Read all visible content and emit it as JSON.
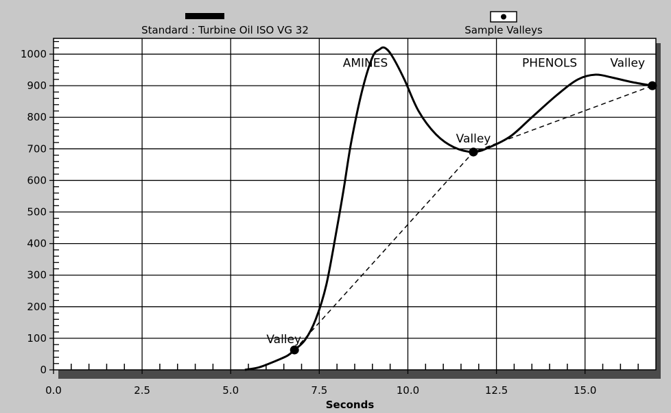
{
  "chart_data": {
    "type": "line",
    "xlabel": "Seconds",
    "ylabel": "",
    "title": "",
    "xlim": [
      0,
      17
    ],
    "ylim": [
      0,
      1050
    ],
    "x_ticks": [
      0.0,
      2.5,
      5.0,
      7.5,
      10.0,
      12.5,
      15.0
    ],
    "x_tick_labels": [
      "0.0",
      "2.5",
      "5.0",
      "7.5",
      "10.0",
      "12.5",
      "15.0"
    ],
    "y_ticks": [
      0,
      100,
      200,
      300,
      400,
      500,
      600,
      700,
      800,
      900,
      1000
    ],
    "y_tick_labels": [
      "0",
      "100",
      "200",
      "300",
      "400",
      "500",
      "600",
      "700",
      "800",
      "900",
      "1000"
    ],
    "grid": true,
    "legend": [
      {
        "label": "Standard : Turbine Oil ISO VG 32",
        "marker": "solid-bar"
      },
      {
        "label": "Sample Valleys",
        "marker": "boxed-dot"
      }
    ],
    "series": [
      {
        "name": "Standard : Turbine Oil ISO VG 32",
        "style": "solid",
        "points": [
          [
            5.4,
            0
          ],
          [
            5.8,
            8
          ],
          [
            6.2,
            25
          ],
          [
            6.6,
            45
          ],
          [
            6.8,
            63
          ],
          [
            7.1,
            95
          ],
          [
            7.4,
            160
          ],
          [
            7.7,
            270
          ],
          [
            8.0,
            450
          ],
          [
            8.2,
            580
          ],
          [
            8.4,
            720
          ],
          [
            8.7,
            880
          ],
          [
            9.0,
            990
          ],
          [
            9.2,
            1015
          ],
          [
            9.35,
            1020
          ],
          [
            9.55,
            995
          ],
          [
            9.9,
            920
          ],
          [
            10.3,
            820
          ],
          [
            10.8,
            745
          ],
          [
            11.3,
            705
          ],
          [
            11.85,
            690
          ],
          [
            12.3,
            705
          ],
          [
            12.9,
            740
          ],
          [
            13.5,
            800
          ],
          [
            14.2,
            870
          ],
          [
            14.8,
            920
          ],
          [
            15.3,
            935
          ],
          [
            15.8,
            925
          ],
          [
            16.3,
            912
          ],
          [
            16.9,
            900
          ]
        ]
      },
      {
        "name": "Sample Valleys",
        "style": "dashed",
        "points": [
          [
            6.8,
            63
          ],
          [
            11.85,
            690
          ],
          [
            16.9,
            900
          ]
        ]
      }
    ],
    "annotations": [
      {
        "text": "AMINES",
        "x": 8.8,
        "y": 960
      },
      {
        "text": "PHENOLS",
        "x": 14.0,
        "y": 960
      },
      {
        "text": "Valley",
        "x": 6.5,
        "y": 85
      },
      {
        "text": "Valley",
        "x": 11.85,
        "y": 720
      },
      {
        "text": "Valley",
        "x": 16.2,
        "y": 960
      }
    ]
  }
}
